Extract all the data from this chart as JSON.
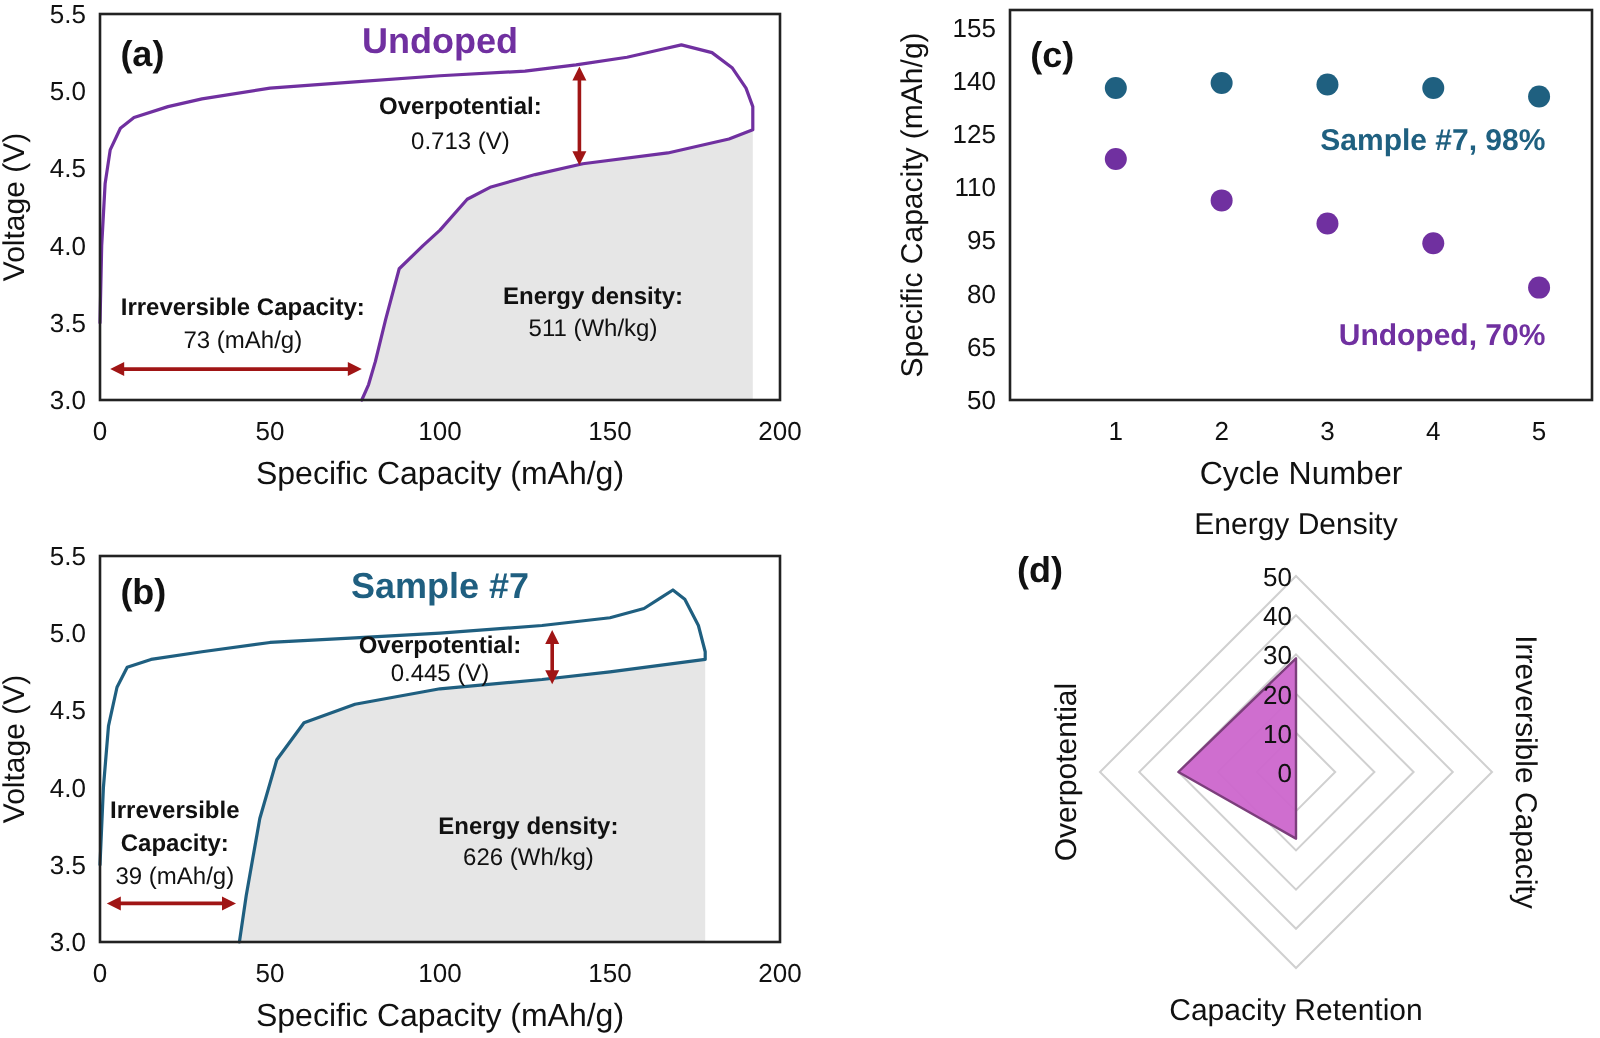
{
  "chart_data": [
    {
      "type": "line",
      "title": "Undoped",
      "xlabel": "Specific Capacity (mAh/g)",
      "ylabel": "Voltage (V)",
      "xlim": [
        0,
        200
      ],
      "xticks": [
        0,
        50,
        100,
        150,
        200
      ],
      "ylim": [
        3,
        5.5
      ],
      "yticks": [
        {
          "value": 3,
          "label": "3.0"
        },
        3.5,
        {
          "value": 4,
          "label": "4.0"
        },
        4.5,
        {
          "value": 5,
          "label": "5.0"
        },
        5.5
      ],
      "annotations": [
        "(a)",
        "Overpotential:",
        "0.713 (V)",
        "Irreversible Capacity:",
        "73 (mAh/g)",
        "Energy density:",
        "511 (Wh/kg)"
      ],
      "series": [
        {
          "type": "area",
          "color": "#e6e6e6",
          "x": [
            192,
            185,
            167,
            142,
            128,
            115,
            108,
            100,
            95,
            88,
            84,
            81,
            79,
            77
          ],
          "values": [
            4.75,
            4.69,
            4.6,
            4.53,
            4.46,
            4.38,
            4.3,
            4.1,
            4.0,
            3.85,
            3.52,
            3.25,
            3.1,
            3.0
          ]
        },
        {
          "type": "line",
          "color": "#7030a0",
          "x": [
            0,
            0.5,
            1.5,
            3,
            6,
            10,
            20,
            30,
            50,
            75,
            100,
            125,
            140,
            155,
            165,
            171,
            180,
            186,
            190,
            192,
            192,
            185,
            167,
            142,
            128,
            115,
            108,
            100,
            95,
            88,
            84,
            81,
            79,
            77
          ],
          "values": [
            3.5,
            4.0,
            4.4,
            4.62,
            4.76,
            4.83,
            4.9,
            4.95,
            5.02,
            5.06,
            5.1,
            5.13,
            5.17,
            5.22,
            5.27,
            5.3,
            5.25,
            5.15,
            5.02,
            4.9,
            4.75,
            4.69,
            4.6,
            4.53,
            4.46,
            4.38,
            4.3,
            4.1,
            4.0,
            3.85,
            3.52,
            3.25,
            3.1,
            3.0
          ]
        }
      ]
    },
    {
      "type": "line",
      "title": "Sample #7",
      "xlabel": "Specific Capacity (mAh/g)",
      "ylabel": "Voltage (V)",
      "xlim": [
        0,
        200
      ],
      "xticks": [
        0,
        50,
        100,
        150,
        200
      ],
      "ylim": [
        3,
        5.5
      ],
      "yticks": [
        {
          "value": 3,
          "label": "3.0"
        },
        3.5,
        {
          "value": 4,
          "label": "4.0"
        },
        4.5,
        {
          "value": 5,
          "label": "5.0"
        },
        5.5
      ],
      "annotations": [
        "(b)",
        "Overpotential:",
        "0.445 (V)",
        "Irreversible",
        "Capacity:",
        "39 (mAh/g)",
        "Energy density:",
        "626 (Wh/kg)"
      ],
      "series": [
        {
          "type": "area",
          "color": "#e6e6e6",
          "x": [
            178,
            150,
            130,
            100,
            75,
            60,
            52,
            47,
            43,
            41
          ],
          "values": [
            4.83,
            4.75,
            4.7,
            4.64,
            4.54,
            4.42,
            4.18,
            3.8,
            3.3,
            3.0
          ]
        },
        {
          "type": "line",
          "color": "#1f5f80",
          "x": [
            0,
            1,
            2.5,
            5,
            8,
            15,
            30,
            50,
            75,
            100,
            130,
            150,
            160,
            165,
            168.5,
            172,
            176,
            178,
            178,
            150,
            130,
            100,
            75,
            60,
            52,
            47,
            43,
            41
          ],
          "values": [
            3.5,
            4.0,
            4.4,
            4.65,
            4.78,
            4.83,
            4.88,
            4.94,
            4.97,
            5.0,
            5.05,
            5.1,
            5.16,
            5.23,
            5.28,
            5.22,
            5.05,
            4.88,
            4.83,
            4.75,
            4.7,
            4.64,
            4.54,
            4.42,
            4.18,
            3.8,
            3.3,
            3.0
          ]
        }
      ]
    },
    {
      "type": "scatter",
      "xlabel": "Cycle Number",
      "ylabel": "Specific Capacity (mAh/g)",
      "xlim": [
        0,
        5.5
      ],
      "xticks": [
        1,
        2,
        3,
        4,
        5
      ],
      "ylim": [
        50,
        160
      ],
      "yticks": [
        50,
        65,
        80,
        95,
        110,
        125,
        140,
        155
      ],
      "marker": "circle",
      "annotations": [
        "(c)"
      ],
      "series": [
        {
          "name": "Sample #7, 98%",
          "color": "#1f6080",
          "x": [
            1,
            2,
            3,
            4,
            5
          ],
          "values": [
            138,
            139.4,
            139,
            138,
            135.6
          ]
        },
        {
          "name": "Undoped, 70%",
          "color": "#7030a0",
          "x": [
            1,
            2,
            3,
            4,
            5
          ],
          "values": [
            118,
            106.3,
            99.8,
            94.2,
            81.7
          ]
        }
      ]
    },
    {
      "type": "radar",
      "categories": [
        "Energy Density",
        "Irreversible Capacity",
        "Capacity Retention",
        "Overpotential"
      ],
      "ylim": [
        0,
        50
      ],
      "yticks": [
        0,
        10,
        20,
        30,
        40,
        50
      ],
      "grid": true,
      "annotations": [
        "(d)"
      ],
      "series": [
        {
          "color": "#cc66cc",
          "values": [
            29,
            0,
            17,
            30
          ]
        }
      ]
    }
  ]
}
